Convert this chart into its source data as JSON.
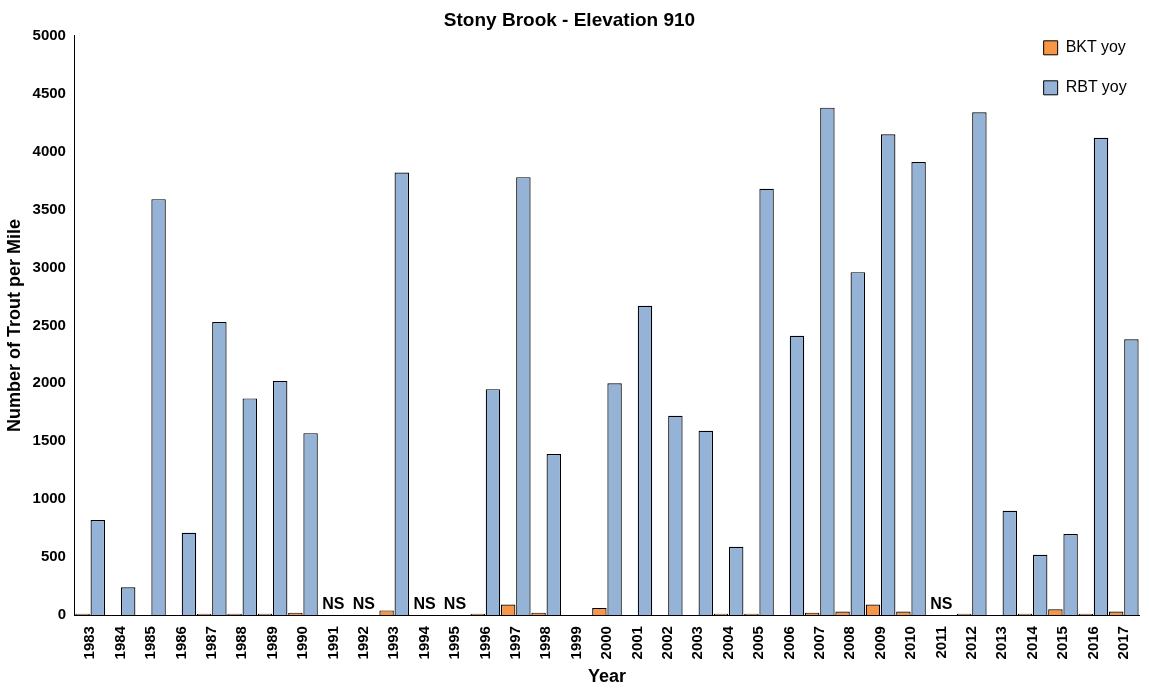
{
  "chart_data": {
    "type": "bar",
    "title": "Stony Brook - Elevation 910",
    "xlabel": "Year",
    "ylabel": "Number of Trout per Mile",
    "categories": [
      "1983",
      "1984",
      "1985",
      "1986",
      "1987",
      "1988",
      "1989",
      "1990",
      "1991",
      "1992",
      "1993",
      "1994",
      "1995",
      "1996",
      "1997",
      "1998",
      "1999",
      "2000",
      "2001",
      "2002",
      "2003",
      "2004",
      "2005",
      "2006",
      "2007",
      "2008",
      "2009",
      "2010",
      "2011",
      "2012",
      "2013",
      "2014",
      "2015",
      "2016",
      "2017"
    ],
    "series": [
      {
        "name": "BKT yoy",
        "color": "#f79646",
        "values": [
          10,
          0,
          0,
          0,
          10,
          10,
          10,
          20,
          null,
          null,
          40,
          null,
          null,
          10,
          90,
          20,
          0,
          60,
          0,
          0,
          0,
          10,
          10,
          0,
          20,
          30,
          90,
          30,
          null,
          10,
          0,
          10,
          50,
          10,
          30
        ]
      },
      {
        "name": "RBT yoy",
        "color": "#95b3d7",
        "values": [
          820,
          240,
          3590,
          710,
          2530,
          1870,
          2020,
          1570,
          null,
          null,
          3820,
          null,
          null,
          1950,
          3780,
          1390,
          0,
          2000,
          2670,
          1720,
          1590,
          590,
          3680,
          2410,
          4380,
          2960,
          4150,
          3910,
          null,
          4340,
          900,
          520,
          700,
          4120,
          2380
        ]
      }
    ],
    "ylim": [
      0,
      5000
    ],
    "yticks": [
      0,
      500,
      1000,
      1500,
      2000,
      2500,
      3000,
      3500,
      4000,
      4500,
      5000
    ],
    "grid": false,
    "legend": "top right",
    "annotations": [
      "NS",
      "NS",
      "NS",
      "NS",
      "NS"
    ]
  }
}
